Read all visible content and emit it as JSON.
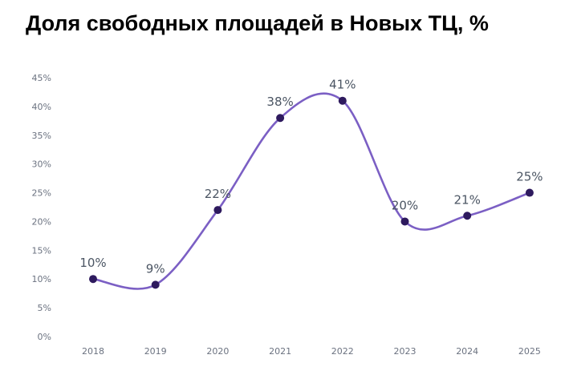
{
  "chart_data": {
    "type": "line",
    "title": "Доля свободных площадей в Новых ТЦ, %",
    "categories": [
      "2018",
      "2019",
      "2020",
      "2021",
      "2022",
      "2023",
      "2024",
      "2025"
    ],
    "series": [
      {
        "values": [
          10,
          9,
          22,
          38,
          41,
          20,
          21,
          25
        ],
        "labels": [
          "10%",
          "9%",
          "22%",
          "38%",
          "41%",
          "20%",
          "21%",
          "25%"
        ]
      }
    ],
    "yticks": [
      "0%",
      "5%",
      "10%",
      "15%",
      "20%",
      "25%",
      "30%",
      "35%",
      "40%",
      "45%"
    ],
    "ylim": [
      0,
      45
    ],
    "grid": false,
    "smooth": true,
    "colors": {
      "line": "#7b5fc4",
      "marker": "#2e1a5e",
      "tick": "#6b7280",
      "label": "#4b5563"
    }
  }
}
